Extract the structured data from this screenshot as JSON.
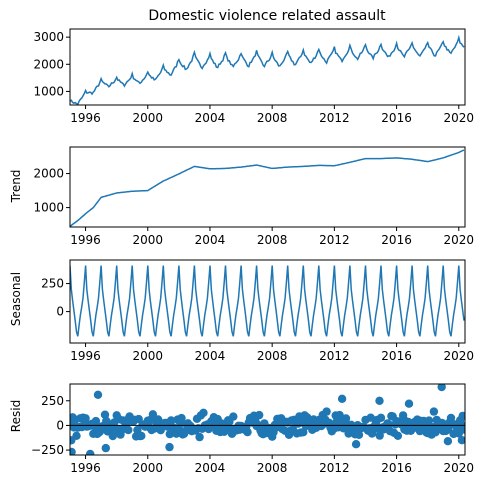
{
  "colors": {
    "series": "#1f77b4",
    "axis": "#000000",
    "background": "#ffffff"
  },
  "chart_data": [
    {
      "type": "line",
      "title": "Domestic violence related assault",
      "ylabel": "",
      "xlim": [
        1995,
        2020.4
      ],
      "ylim": [
        500,
        3300
      ],
      "xticks": [
        "1996",
        "2000",
        "2004",
        "2008",
        "2012",
        "2016",
        "2020"
      ],
      "yticks": [
        1000,
        2000,
        3000
      ],
      "yticklabels": [
        "1000",
        "2000",
        "3000"
      ],
      "grid": false,
      "series": [
        {
          "anchors": [
            [
              1995.0,
              560
            ],
            [
              1995.5,
              620
            ],
            [
              1996.0,
              850
            ],
            [
              1996.5,
              1050
            ],
            [
              1997.0,
              1250
            ],
            [
              1998.0,
              1320
            ],
            [
              1999.0,
              1390
            ],
            [
              2000.0,
              1470
            ],
            [
              2001.0,
              1650
            ],
            [
              2002.0,
              1900
            ],
            [
              2003.0,
              2080
            ],
            [
              2004.0,
              2050
            ],
            [
              2005.0,
              2080
            ],
            [
              2006.0,
              2100
            ],
            [
              2007.0,
              2150
            ],
            [
              2008.0,
              2080
            ],
            [
              2009.0,
              2130
            ],
            [
              2010.0,
              2200
            ],
            [
              2011.0,
              2240
            ],
            [
              2012.0,
              2280
            ],
            [
              2013.0,
              2360
            ],
            [
              2014.0,
              2400
            ],
            [
              2015.0,
              2430
            ],
            [
              2016.0,
              2450
            ],
            [
              2017.0,
              2470
            ],
            [
              2018.0,
              2470
            ],
            [
              2019.0,
              2530
            ],
            [
              2020.0,
              2620
            ],
            [
              2020.33,
              2700
            ]
          ],
          "seasonal_amplitude": 330,
          "noise": 90
        }
      ]
    },
    {
      "type": "line",
      "ylabel": "Trend",
      "xlim": [
        1995,
        2020.4
      ],
      "ylim": [
        430,
        2780
      ],
      "xticks": [
        "1996",
        "2000",
        "2004",
        "2008",
        "2012",
        "2016",
        "2020"
      ],
      "yticks": [
        1000,
        2000
      ],
      "yticklabels": [
        "1000",
        "2000"
      ],
      "grid": false,
      "series": [
        {
          "points": [
            [
              1995.0,
              450
            ],
            [
              1995.5,
              620
            ],
            [
              1996.0,
              820
            ],
            [
              1996.5,
              1000
            ],
            [
              1997.0,
              1300
            ],
            [
              1998.0,
              1430
            ],
            [
              1999.0,
              1480
            ],
            [
              2000.0,
              1500
            ],
            [
              2001.0,
              1780
            ],
            [
              2002.0,
              1990
            ],
            [
              2003.0,
              2210
            ],
            [
              2004.0,
              2140
            ],
            [
              2005.0,
              2150
            ],
            [
              2006.0,
              2190
            ],
            [
              2007.0,
              2250
            ],
            [
              2008.0,
              2150
            ],
            [
              2009.0,
              2190
            ],
            [
              2010.0,
              2210
            ],
            [
              2011.0,
              2240
            ],
            [
              2012.0,
              2230
            ],
            [
              2013.0,
              2330
            ],
            [
              2014.0,
              2440
            ],
            [
              2015.0,
              2440
            ],
            [
              2016.0,
              2460
            ],
            [
              2017.0,
              2420
            ],
            [
              2018.0,
              2350
            ],
            [
              2019.0,
              2460
            ],
            [
              2020.0,
              2620
            ],
            [
              2020.33,
              2690
            ]
          ]
        }
      ]
    },
    {
      "type": "line",
      "ylabel": "Seasonal",
      "xlim": [
        1995,
        2020.4
      ],
      "ylim": [
        -280,
        460
      ],
      "xticks": [
        "1996",
        "2000",
        "2004",
        "2008",
        "2012",
        "2016",
        "2020"
      ],
      "yticks": [
        0,
        250
      ],
      "yticklabels": [
        "0",
        "250"
      ],
      "grid": false,
      "series": [
        {
          "period": 1,
          "monthly_pattern": [
            410,
            200,
            100,
            10,
            -80,
            -180,
            -220,
            -120,
            -30,
            40,
            120,
            260
          ]
        }
      ]
    },
    {
      "type": "scatter",
      "ylabel": "Resid",
      "xlim": [
        1995,
        2020.4
      ],
      "ylim": [
        -300,
        420
      ],
      "xticks": [
        "1996",
        "2000",
        "2004",
        "2008",
        "2012",
        "2016",
        "2020"
      ],
      "yticks": [
        -250,
        0,
        250
      ],
      "yticklabels": [
        "−250",
        "0",
        "250"
      ],
      "grid": false,
      "series": [
        {
          "spread": 90,
          "outliers": [
            [
              1995.1,
              -270
            ],
            [
              1996.3,
              -290
            ],
            [
              1996.8,
              310
            ],
            [
              1997.3,
              -230
            ],
            [
              2001.4,
              -220
            ],
            [
              2012.5,
              270
            ],
            [
              2013.4,
              -190
            ],
            [
              2014.9,
              250
            ],
            [
              2016.8,
              220
            ],
            [
              2018.9,
              390
            ],
            [
              2018.4,
              140
            ],
            [
              2019.3,
              -160
            ],
            [
              2020.2,
              -150
            ]
          ]
        }
      ]
    }
  ]
}
